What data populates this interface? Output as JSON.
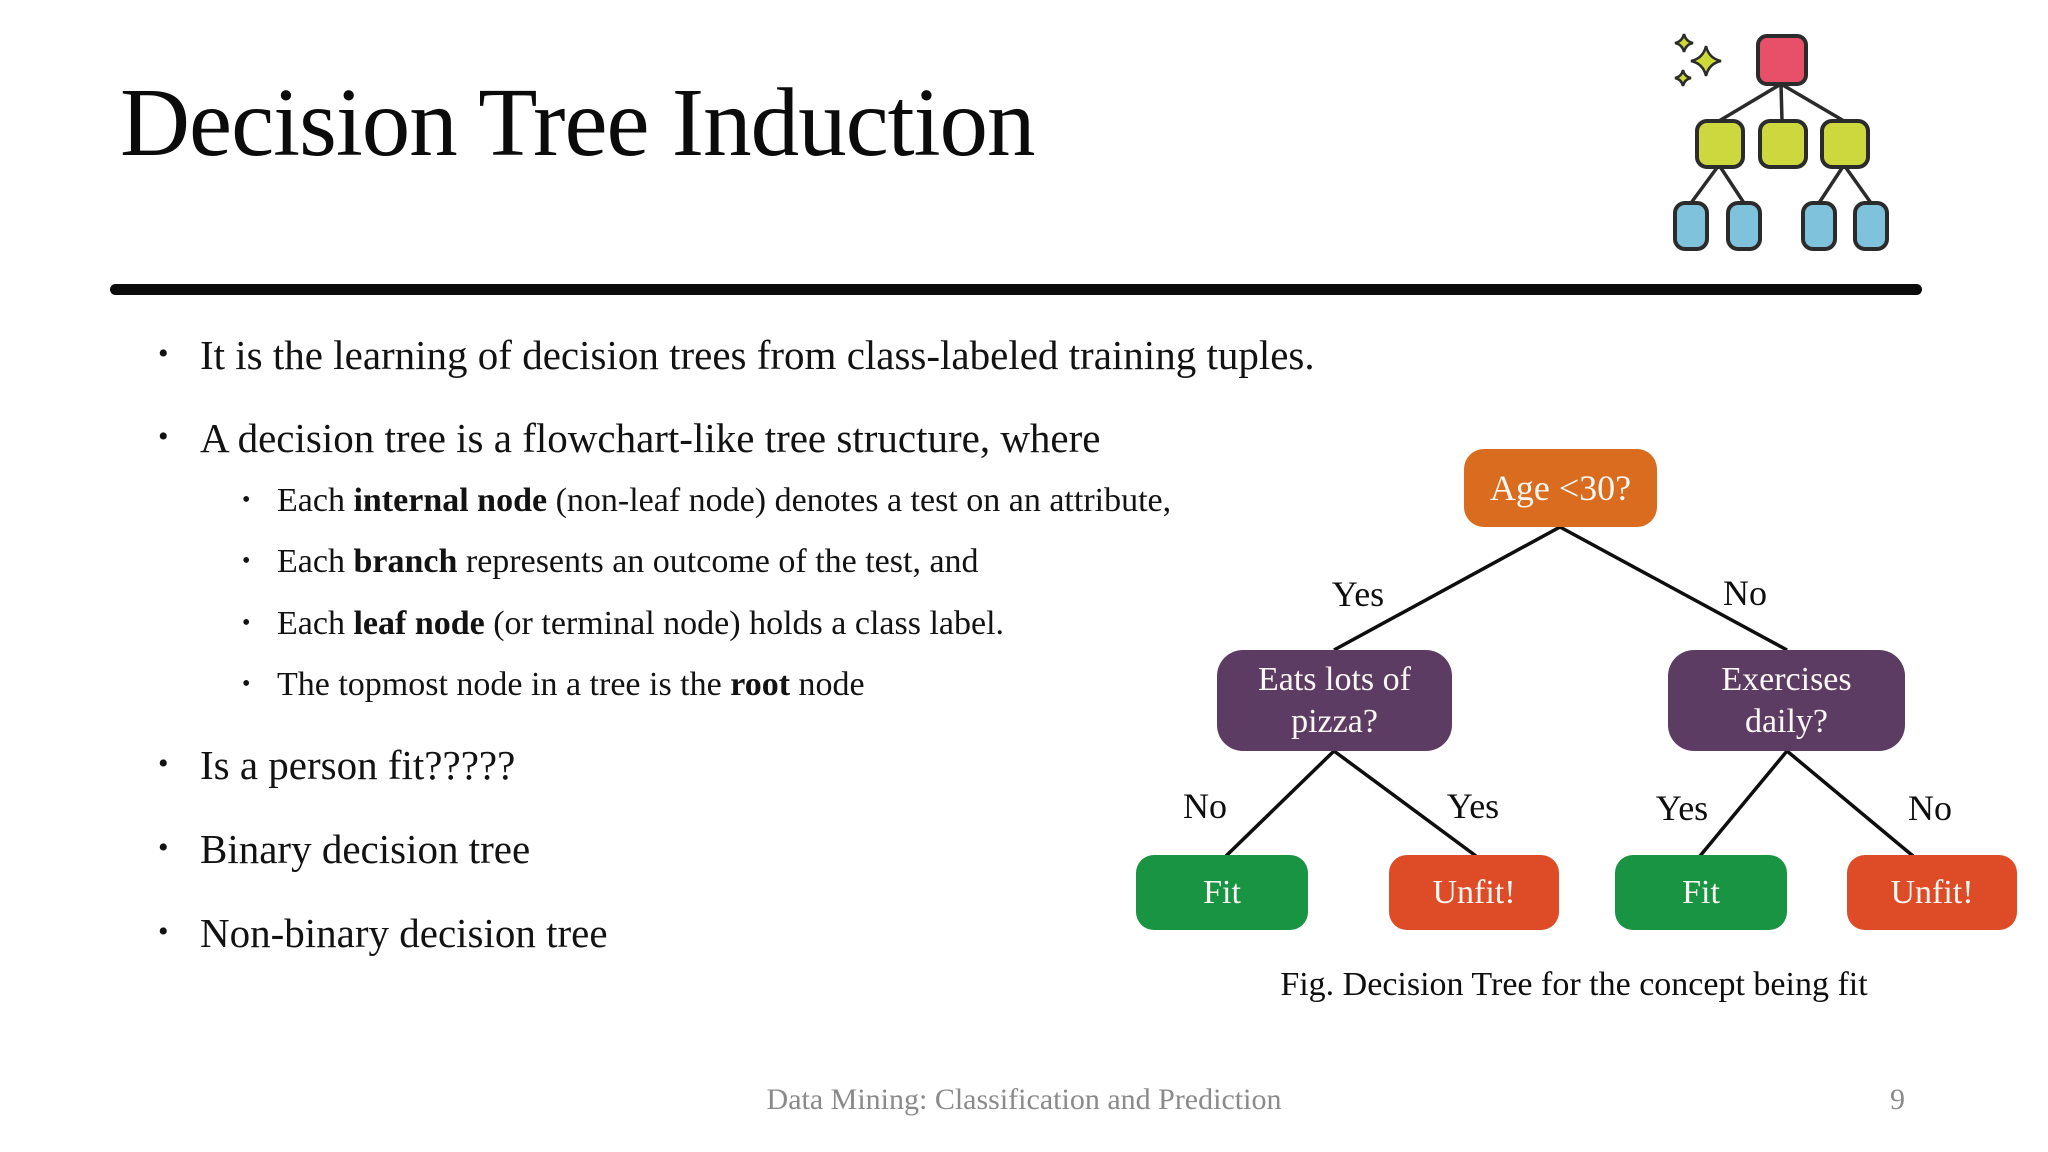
{
  "title": "Decision Tree Induction",
  "bullets": {
    "dot": "•",
    "items": [
      {
        "level": 1,
        "segments": [
          {
            "t": "It is the learning of decision trees from class-labeled training tuples."
          }
        ]
      },
      {
        "level": 1,
        "segments": [
          {
            "t": "A decision tree is a flowchart-like tree structure, where"
          }
        ]
      },
      {
        "level": 2,
        "segments": [
          {
            "t": "Each "
          },
          {
            "t": "internal node",
            "b": true
          },
          {
            "t": " (non-leaf node) denotes a test on an attribute,"
          }
        ]
      },
      {
        "level": 2,
        "segments": [
          {
            "t": "Each "
          },
          {
            "t": "branch",
            "b": true
          },
          {
            "t": " represents an outcome of the test, and"
          }
        ]
      },
      {
        "level": 2,
        "segments": [
          {
            "t": "Each "
          },
          {
            "t": "leaf node",
            "b": true
          },
          {
            "t": " (or terminal node) holds a class label."
          }
        ]
      },
      {
        "level": 2,
        "segments": [
          {
            "t": "The topmost node in a tree is the "
          },
          {
            "t": "root",
            "b": true
          },
          {
            "t": " node"
          }
        ]
      },
      {
        "level": 1,
        "segments": [
          {
            "t": "Is a person fit?????"
          }
        ]
      },
      {
        "level": 1,
        "segments": [
          {
            "t": "Binary decision tree"
          }
        ]
      },
      {
        "level": 1,
        "segments": [
          {
            "t": "Non-binary  decision tree"
          }
        ]
      }
    ]
  },
  "diagram": {
    "root_node": {
      "label": "Age <30?",
      "color": "#D96C1E"
    },
    "left_node": {
      "line1": "Eats lots of",
      "line2": "pizza?",
      "color": "#5D3C64"
    },
    "right_node": {
      "line1": "Exercises",
      "line2": "daily?",
      "color": "#5D3C64"
    },
    "leaves": [
      {
        "label": "Fit",
        "color": "#189442"
      },
      {
        "label": "Unfit!",
        "color": "#DE4B27"
      },
      {
        "label": "Fit",
        "color": "#189442"
      },
      {
        "label": "Unfit!",
        "color": "#DE4B27"
      }
    ],
    "branch_labels": {
      "level2_left": "Yes",
      "level2_right": "No",
      "level3_1": "No",
      "level3_2": "Yes",
      "level3_3": "Yes",
      "level3_4": "No"
    },
    "edge_color": "#0e0e0e",
    "caption": "Fig. Decision Tree for the concept being fit"
  },
  "footer": {
    "text": "Data Mining: Classification and Prediction",
    "page": "9"
  },
  "icon_colors": {
    "root": "#E8506A",
    "mid": "#CCD83D",
    "leaf": "#7FC2DC",
    "outline": "#2B2B2B",
    "sparkle": "#CDD938"
  }
}
